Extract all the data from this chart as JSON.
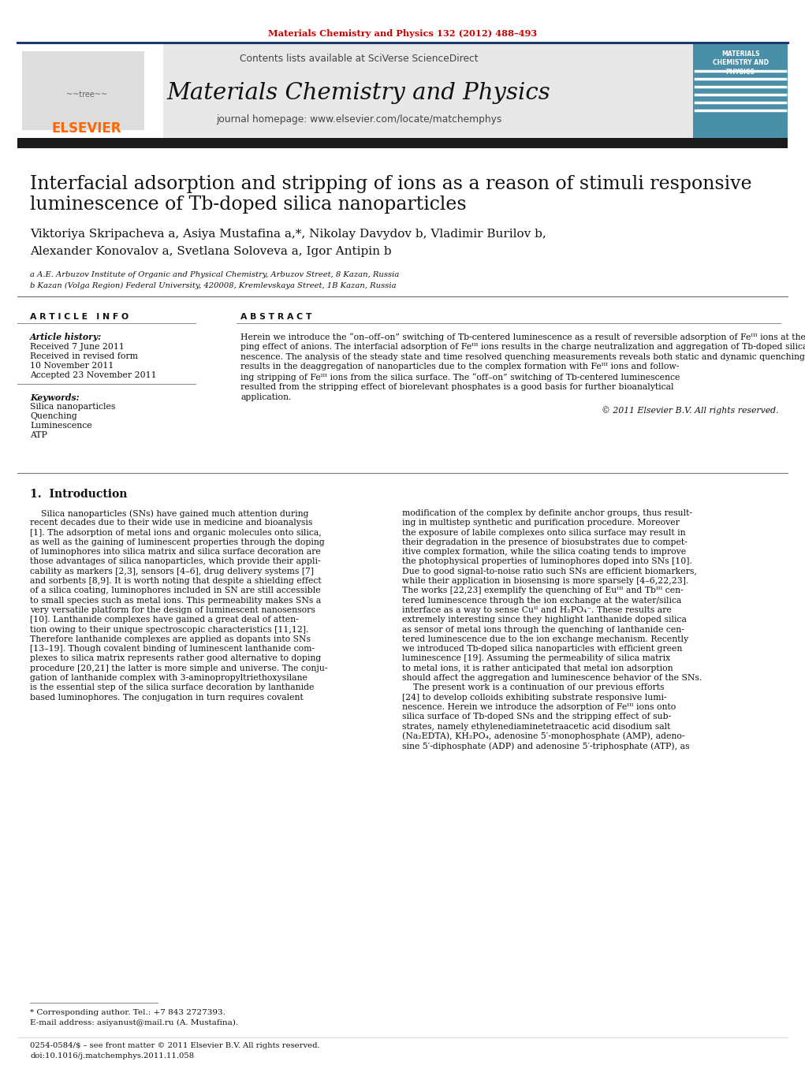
{
  "page_bg": "#ffffff",
  "header_line_color": "#1a3a6b",
  "journal_title_header": "Materials Chemistry and Physics 132 (2012) 488–493",
  "header_title_color": "#cc0000",
  "sciverse_text": "Contents lists available at SciVerse ScienceDirect",
  "journal_name": "Materials Chemistry and Physics",
  "journal_homepage_line": "journal homepage: www.elsevier.com/locate/matchemphys",
  "header_bg": "#e8e8e8",
  "dark_bar_color": "#1a1a1a",
  "elsevier_logo_color": "#ff6600",
  "article_title_line1": "Interfacial adsorption and stripping of ions as a reason of stimuli responsive",
  "article_title_line2": "luminescence of Tb-doped silica nanoparticles",
  "authors_line1": "Viktoriya Skripacheva a, Asiya Mustafina a,*, Nikolay Davydov b, Vladimir Burilov b,",
  "authors_line2": "Alexander Konovalov a, Svetlana Soloveva a, Igor Antipin b",
  "affil_a": "a A.E. Arbuzov Institute of Organic and Physical Chemistry, Arbuzov Street, 8 Kazan, Russia",
  "affil_b": "b Kazan (Volga Region) Federal University, 420008, Kremlevskaya Street, 1B Kazan, Russia",
  "article_info_header": "A R T I C L E   I N F O",
  "abstract_header": "A B S T R A C T",
  "article_history_label": "Article history:",
  "received_1": "Received 7 June 2011",
  "received_revised": "Received in revised form",
  "received_revised_date": "10 November 2011",
  "accepted": "Accepted 23 November 2011",
  "keywords_label": "Keywords:",
  "keywords": [
    "Silica nanoparticles",
    "Quenching",
    "Luminescence",
    "ATP"
  ],
  "copyright": "© 2011 Elsevier B.V. All rights reserved.",
  "section_intro": "1.  Introduction",
  "footnote_star": "* Corresponding author. Tel.: +7 843 2727393.",
  "footnote_email": "E-mail address: asiyanust@mail.ru (A. Mustafina).",
  "footer_issn": "0254-0584/$ – see front matter © 2011 Elsevier B.V. All rights reserved.",
  "footer_doi": "doi:10.1016/j.matchemphys.2011.11.058",
  "abstract_lines": [
    "Herein we introduce the “on–off–on” switching of Tb-centered luminescence as a result of reversible adsorption of Feᴵᴵᴵ ions at the silica/water interface of Tb-doped silica nanoparticles and the strip-",
    "ping effect of anions. The interfacial adsorption of Feᴵᴵᴵ ions results in the charge neutralization and aggregation of Tb-doped silica nanoparticles, accompanied by significant quenching of Tb-centered lumi-",
    "nescence. The analysis of the steady state and time resolved quenching measurements reveals both static and dynamic quenching mechanisms. The addition of EDTA and some phosphates, including ATP",
    "results in the deaggregation of nanoparticles due to the complex formation with Feᴵᴵᴵ ions and follow-",
    "ing stripping of Feᴵᴵᴵ ions from the silica surface. The “off–on” switching of Tb-centered luminescence",
    "resulted from the stripping effect of biorelevant phosphates is a good basis for further bioanalytical",
    "application."
  ],
  "col1_lines": [
    "    Silica nanoparticles (SNs) have gained much attention during",
    "recent decades due to their wide use in medicine and bioanalysis",
    "[1]. The adsorption of metal ions and organic molecules onto silica,",
    "as well as the gaining of luminescent properties through the doping",
    "of luminophores into silica matrix and silica surface decoration are",
    "those advantages of silica nanoparticles, which provide their appli-",
    "cability as markers [2,3], sensors [4–6], drug delivery systems [7]",
    "and sorbents [8,9]. It is worth noting that despite a shielding effect",
    "of a silica coating, luminophores included in SN are still accessible",
    "to small species such as metal ions. This permeability makes SNs a",
    "very versatile platform for the design of luminescent nanosensors",
    "[10]. Lanthanide complexes have gained a great deal of atten-",
    "tion owing to their unique spectroscopic characteristics [11,12].",
    "Therefore lanthanide complexes are applied as dopants into SNs",
    "[13–19]. Though covalent binding of luminescent lanthanide com-",
    "plexes to silica matrix represents rather good alternative to doping",
    "procedure [20,21] the latter is more simple and universe. The conju-",
    "gation of lanthanide complex with 3-aminopropyltriethoxysilane",
    "is the essential step of the silica surface decoration by lanthanide",
    "based luminophores. The conjugation in turn requires covalent"
  ],
  "col2_lines": [
    "modification of the complex by definite anchor groups, thus result-",
    "ing in multistep synthetic and purification procedure. Moreover",
    "the exposure of labile complexes onto silica surface may result in",
    "their degradation in the presence of biosubstrates due to compet-",
    "itive complex formation, while the silica coating tends to improve",
    "the photophysical properties of luminophores doped into SNs [10].",
    "Due to good signal-to-noise ratio such SNs are efficient biomarkers,",
    "while their application in biosensing is more sparsely [4–6,22,23].",
    "The works [22,23] exemplify the quenching of Euᴵᴵᴵ and Tbᴵᴵᴵ cen-",
    "tered luminescence through the ion exchange at the water/silica",
    "interface as a way to sense Cuᴵᴵ and H₂PO₄⁻. These results are",
    "extremely interesting since they highlight lanthanide doped silica",
    "as sensor of metal ions through the quenching of lanthanide cen-",
    "tered luminescence due to the ion exchange mechanism. Recently",
    "we introduced Tb-doped silica nanoparticles with efficient green",
    "luminescence [19]. Assuming the permeability of silica matrix",
    "to metal ions, it is rather anticipated that metal ion adsorption",
    "should affect the aggregation and luminescence behavior of the SNs.",
    "    The present work is a continuation of our previous efforts",
    "[24] to develop colloids exhibiting substrate responsive lumi-",
    "nescence. Herein we introduce the adsorption of Feᴵᴵᴵ ions onto",
    "silica surface of Tb-doped SNs and the stripping effect of sub-",
    "strates, namely ethylenediaminetetraacetic acid disodium salt",
    "(Na₂EDTA), KH₂PO₄, adenosine 5′-monophosphate (AMP), adeno-",
    "sine 5′-diphosphate (ADP) and adenosine 5′-triphosphate (ATP), as"
  ]
}
